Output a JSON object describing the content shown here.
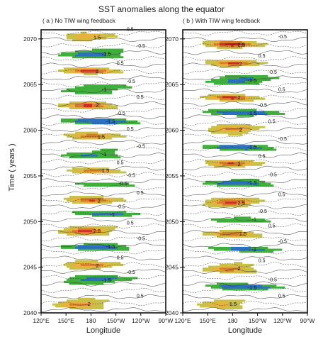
{
  "title": "SST anomalies along the equator",
  "ylabel": "Time ( years )",
  "chart_data": [
    {
      "type": "heatmap",
      "panel_title": "( a ) No TIW wing feedback",
      "xlabel": "Longitude",
      "xticks": [
        "120°E",
        "150°E",
        "180",
        "150°W",
        "120°W",
        "90°W"
      ],
      "yticks": [
        "2040",
        "2045",
        "2050",
        "2055",
        "2060",
        "2065",
        "2070"
      ],
      "ylim": [
        2040,
        2071
      ],
      "contour_labels": [
        "0.5",
        "-0.5",
        "-1",
        "-1.5",
        "1.5",
        "2",
        "2.5"
      ],
      "events": [
        {
          "year": 2041,
          "amp": 2.0,
          "lon": 168
        },
        {
          "year": 2043.6,
          "amp": -1.5,
          "lon": 185
        },
        {
          "year": 2045.2,
          "amp": 2.0,
          "lon": 178
        },
        {
          "year": 2047.3,
          "amp": -1.5,
          "lon": 190
        },
        {
          "year": 2049.0,
          "amp": 2.5,
          "lon": 175
        },
        {
          "year": 2050.8,
          "amp": -1.0,
          "lon": 195
        },
        {
          "year": 2052.3,
          "amp": 2.0,
          "lon": 180
        },
        {
          "year": 2054.2,
          "amp": -0.8,
          "lon": 205
        },
        {
          "year": 2055.6,
          "amp": 1.5,
          "lon": 185
        },
        {
          "year": 2057.4,
          "amp": -1.2,
          "lon": 185
        },
        {
          "year": 2059.3,
          "amp": 1.8,
          "lon": 180
        },
        {
          "year": 2061.0,
          "amp": -1.5,
          "lon": 190
        },
        {
          "year": 2062.8,
          "amp": 2.2,
          "lon": 178
        },
        {
          "year": 2064.5,
          "amp": -1.3,
          "lon": 185
        },
        {
          "year": 2066.5,
          "amp": 2.0,
          "lon": 178
        },
        {
          "year": 2068.4,
          "amp": -1.5,
          "lon": 185
        },
        {
          "year": 2070.2,
          "amp": 1.6,
          "lon": 175
        }
      ]
    },
    {
      "type": "heatmap",
      "panel_title": "( b ) With TIW wing feedback",
      "xlabel": "Longitude",
      "xticks": [
        "120°E",
        "150°E",
        "180",
        "150°W",
        "120°W",
        "90°W"
      ],
      "yticks": [
        "2040",
        "2045",
        "2050",
        "2055",
        "2060",
        "2065",
        "2070"
      ],
      "ylim": [
        2040,
        2071
      ],
      "contour_labels": [
        "0.5",
        "-0.5",
        "-1",
        "-1.5",
        "1.5",
        "2",
        "2.5"
      ],
      "events": [
        {
          "year": 2041,
          "amp": 1.5,
          "lon": 168
        },
        {
          "year": 2042.8,
          "amp": -1.5,
          "lon": 190
        },
        {
          "year": 2044.9,
          "amp": 2.0,
          "lon": 178
        },
        {
          "year": 2047.0,
          "amp": -1.0,
          "lon": 195
        },
        {
          "year": 2048.7,
          "amp": 1.8,
          "lon": 180
        },
        {
          "year": 2050.3,
          "amp": -1.0,
          "lon": 195
        },
        {
          "year": 2052.1,
          "amp": 2.5,
          "lon": 178
        },
        {
          "year": 2054.3,
          "amp": -1.5,
          "lon": 190
        },
        {
          "year": 2056.3,
          "amp": 2.0,
          "lon": 178
        },
        {
          "year": 2058.2,
          "amp": -1.5,
          "lon": 190
        },
        {
          "year": 2060.1,
          "amp": 2.0,
          "lon": 180
        },
        {
          "year": 2061.9,
          "amp": -1.5,
          "lon": 190
        },
        {
          "year": 2063.6,
          "amp": 2.0,
          "lon": 178
        },
        {
          "year": 2065.5,
          "amp": -1.5,
          "lon": 190
        },
        {
          "year": 2067.3,
          "amp": 2.0,
          "lon": 180
        },
        {
          "year": 2069.4,
          "amp": 2.5,
          "lon": 178
        }
      ]
    }
  ],
  "colors": {
    "level_0.5": "#c9c04a",
    "level_1": "#e8b23a",
    "level_1.5": "#d77a2a",
    "level_2": "#d32b24",
    "level_2.5": "#b0151c",
    "level_neg_0.5": "#3fae3b",
    "level_neg_1": "#2b6fbf",
    "contour": "#3a3a3a",
    "axis": "#111111"
  }
}
